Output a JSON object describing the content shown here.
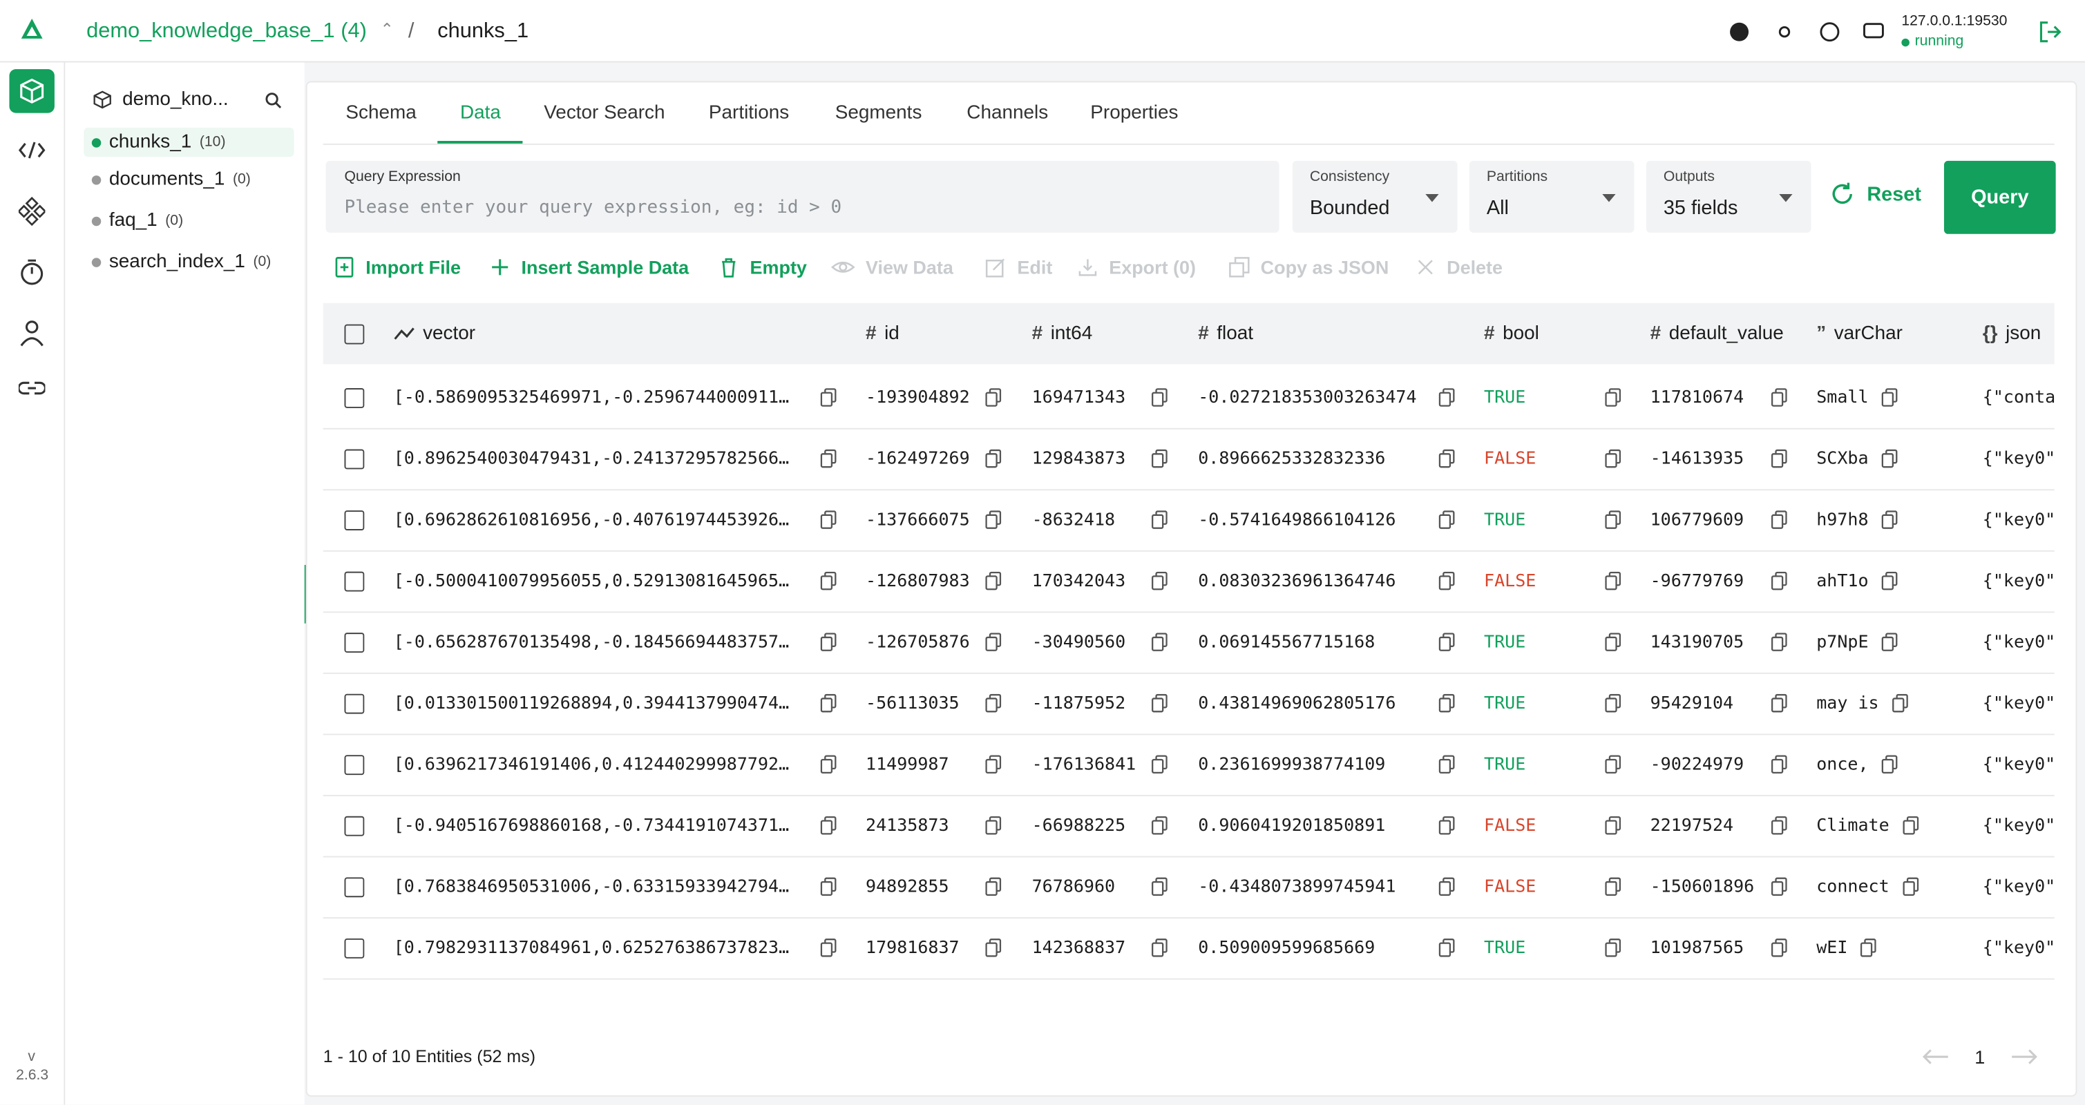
{
  "header": {
    "database": "demo_knowledge_base_1 (4)",
    "separator": "/",
    "collection": "chunks_1",
    "server": "127.0.0.1:19530",
    "status": "running"
  },
  "sidebar": {
    "version_prefix": "v",
    "version": "2.6.3"
  },
  "tree": {
    "database": "demo_kno...",
    "collections": [
      {
        "name": "chunks_1",
        "count": "(10)",
        "active": true
      },
      {
        "name": "documents_1",
        "count": "(0)"
      },
      {
        "name": "faq_1",
        "count": "(0)"
      },
      {
        "name": "search_index_1",
        "count": "(0)"
      }
    ]
  },
  "tabs": [
    {
      "label": "Schema"
    },
    {
      "label": "Data",
      "active": true
    },
    {
      "label": "Vector Search"
    },
    {
      "label": "Partitions"
    },
    {
      "label": "Segments"
    },
    {
      "label": "Channels"
    },
    {
      "label": "Properties"
    }
  ],
  "query": {
    "label": "Query Expression",
    "placeholder": "Please enter your query expression, eg: id > 0"
  },
  "selects": [
    {
      "label": "Consistency",
      "value": "Bounded"
    },
    {
      "label": "Partitions",
      "value": "All"
    },
    {
      "label": "Outputs",
      "value": "35 fields"
    }
  ],
  "buttons": {
    "reset": "Reset",
    "query": "Query"
  },
  "actions": [
    {
      "label": "Import File",
      "enabled": true
    },
    {
      "label": "Insert Sample Data",
      "enabled": true
    },
    {
      "label": "Empty",
      "enabled": true
    },
    {
      "label": "View Data",
      "enabled": false
    },
    {
      "label": "Edit",
      "enabled": false
    },
    {
      "label": "Export (0)",
      "enabled": false
    },
    {
      "label": "Copy as JSON",
      "enabled": false
    },
    {
      "label": "Delete",
      "enabled": false
    }
  ],
  "table": {
    "columns": [
      {
        "name": "vector"
      },
      {
        "icon": "#",
        "name": "id"
      },
      {
        "icon": "#",
        "name": "int64"
      },
      {
        "icon": "#",
        "name": "float"
      },
      {
        "icon": "#",
        "name": "bool"
      },
      {
        "icon": "#",
        "name": "default_value"
      },
      {
        "icon": "”",
        "name": "varChar"
      },
      {
        "icon": "{}",
        "name": "json"
      }
    ],
    "rows": [
      [
        "[-0.5869095325469971,-0.2596744000911…",
        "-193904892",
        "169471343",
        "-0.027218353003263474",
        "TRUE",
        "117810674",
        "Small",
        "{\"conta"
      ],
      [
        "[0.8962540030479431,-0.24137295782566…",
        "-162497269",
        "129843873",
        "0.8966625332832336",
        "FALSE",
        "-14613935",
        "SCXba",
        "{\"key0\""
      ],
      [
        "[0.6962862610816956,-0.40761974453926…",
        "-137666075",
        "-8632418",
        "-0.5741649866104126",
        "TRUE",
        "106779609",
        "h97h8",
        "{\"key0\""
      ],
      [
        "[-0.5000410079956055,0.52913081645965…",
        "-126807983",
        "170342043",
        "0.08303236961364746",
        "FALSE",
        "-96779769",
        "ahT1o",
        "{\"key0\""
      ],
      [
        "[-0.656287670135498,-0.18456694483757…",
        "-126705876",
        "-30490560",
        "0.069145567715168",
        "TRUE",
        "143190705",
        "p7NpE",
        "{\"key0\""
      ],
      [
        "[0.013301500119268894,0.3944137990474…",
        "-56113035",
        "-11875952",
        "0.43814969062805176",
        "TRUE",
        "95429104",
        "may is",
        "{\"key0\""
      ],
      [
        "[0.6396217346191406,0.412440299987792…",
        "11499987",
        "-176136841",
        "0.2361699938774109",
        "TRUE",
        "-90224979",
        "once,",
        "{\"key0\""
      ],
      [
        "[-0.9405167698860168,-0.7344191074371…",
        "24135873",
        "-66988225",
        "0.9060419201850891",
        "FALSE",
        "22197524",
        "Climate",
        "{\"key0\""
      ],
      [
        "[0.7683846950531006,-0.63315933942794…",
        "94892855",
        "76786960",
        "-0.4348073899745941",
        "FALSE",
        "-150601896",
        "connect",
        "{\"key0\""
      ],
      [
        "[0.7982931137084961,0.625276386737823…",
        "179816837",
        "142368837",
        "0.509009599685669",
        "TRUE",
        "101987565",
        "wEI",
        "{\"key0\""
      ]
    ]
  },
  "footer": {
    "summary": "1 - 10 of 10 Entities (52 ms)",
    "page": "1"
  }
}
